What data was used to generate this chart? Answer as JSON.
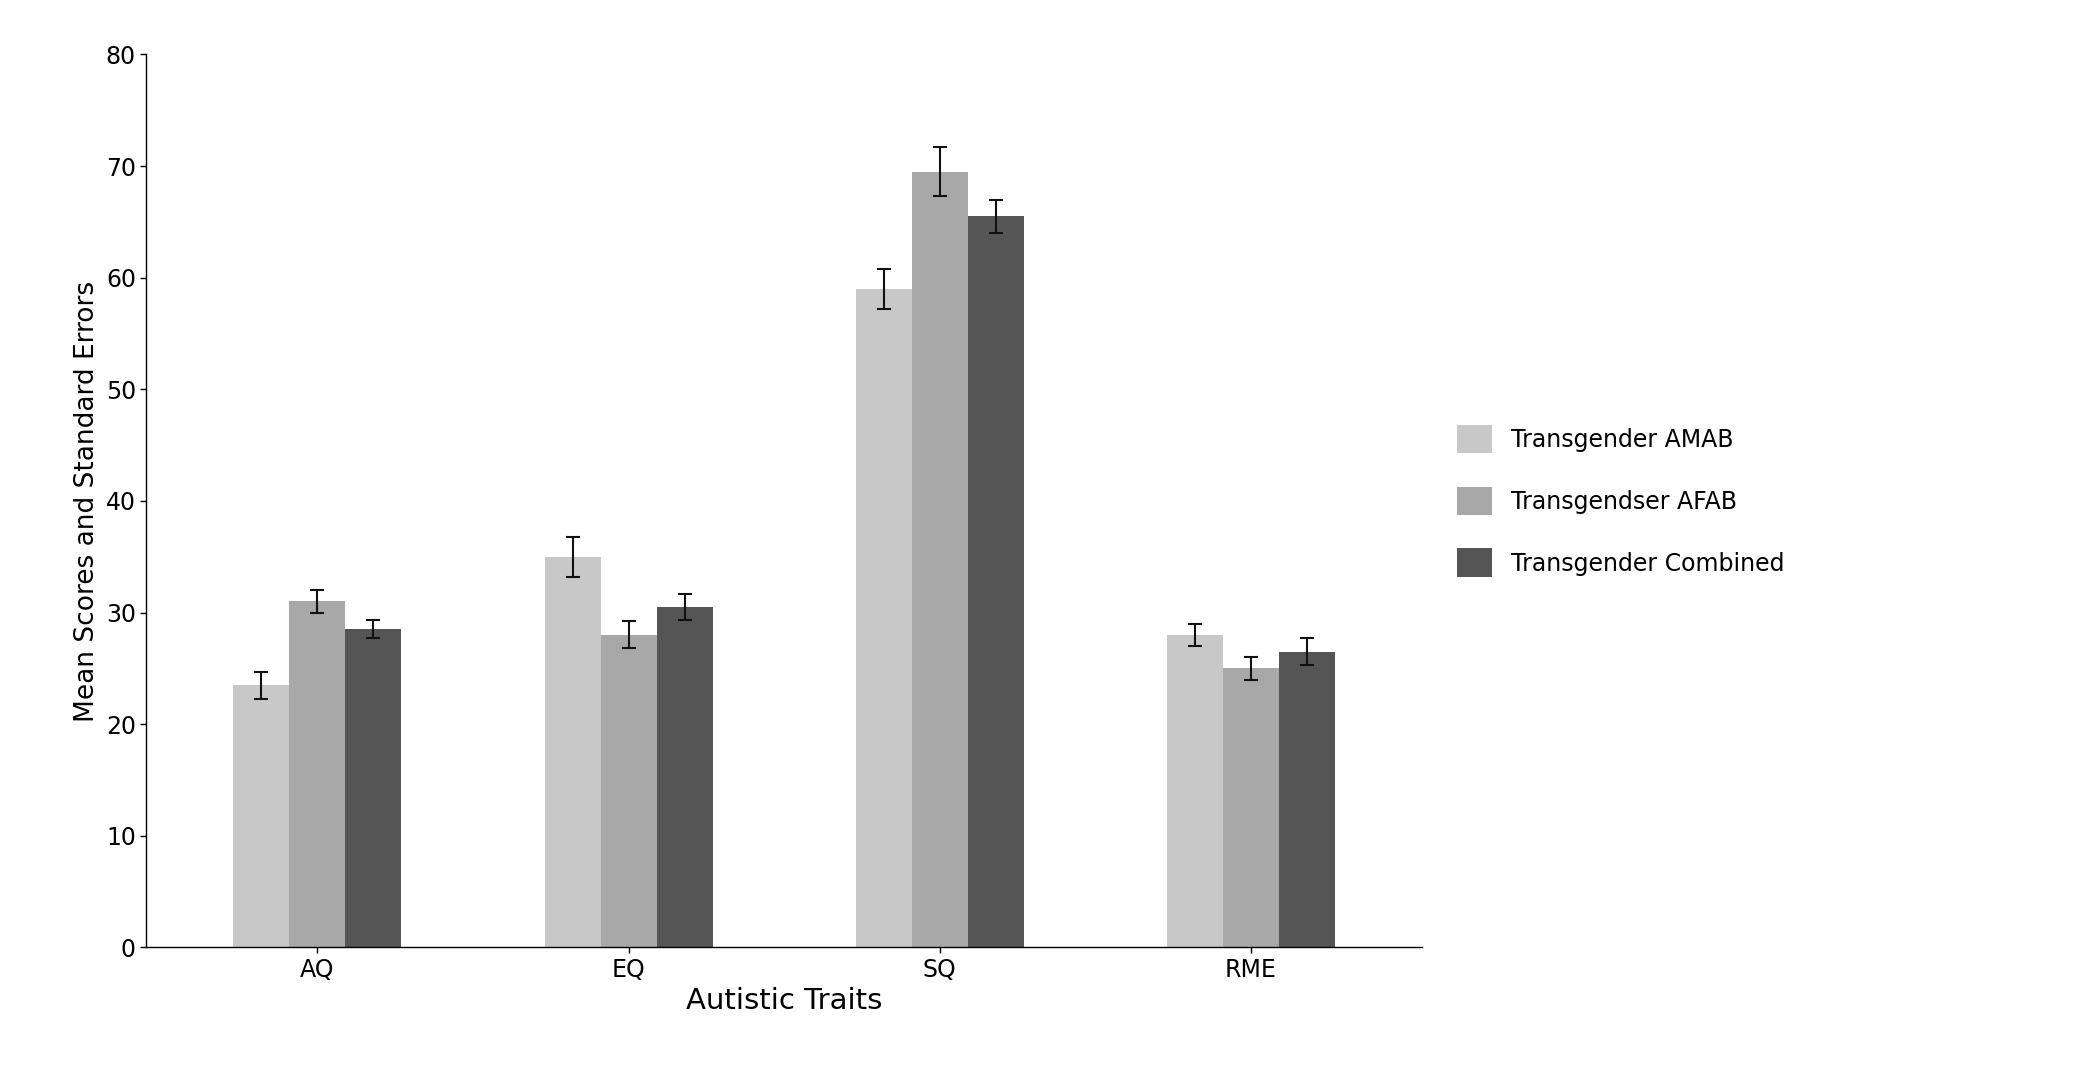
{
  "categories": [
    "AQ",
    "EQ",
    "SQ",
    "RME"
  ],
  "series": {
    "Transgender AMAB": {
      "values": [
        23.5,
        35.0,
        59.0,
        28.0
      ],
      "errors": [
        1.2,
        1.8,
        1.8,
        1.0
      ],
      "color": "#c8c8c8"
    },
    "Transgendser AFAB": {
      "values": [
        31.0,
        28.0,
        69.5,
        25.0
      ],
      "errors": [
        1.0,
        1.2,
        2.2,
        1.0
      ],
      "color": "#a8a8a8"
    },
    "Transgender Combined": {
      "values": [
        28.5,
        30.5,
        65.5,
        26.5
      ],
      "errors": [
        0.8,
        1.2,
        1.5,
        1.2
      ],
      "color": "#555555"
    }
  },
  "ylabel": "Mean Scores and Standard Errors",
  "xlabel": "Autistic Traits",
  "ylim": [
    0,
    80
  ],
  "yticks": [
    0,
    10,
    20,
    30,
    40,
    50,
    60,
    70,
    80
  ],
  "bar_width": 0.18,
  "background_color": "#ffffff",
  "ylabel_fontsize": 19,
  "xlabel_fontsize": 21,
  "tick_fontsize": 17,
  "legend_fontsize": 17,
  "error_capsize": 5,
  "error_linewidth": 1.5,
  "error_color": "#111111"
}
